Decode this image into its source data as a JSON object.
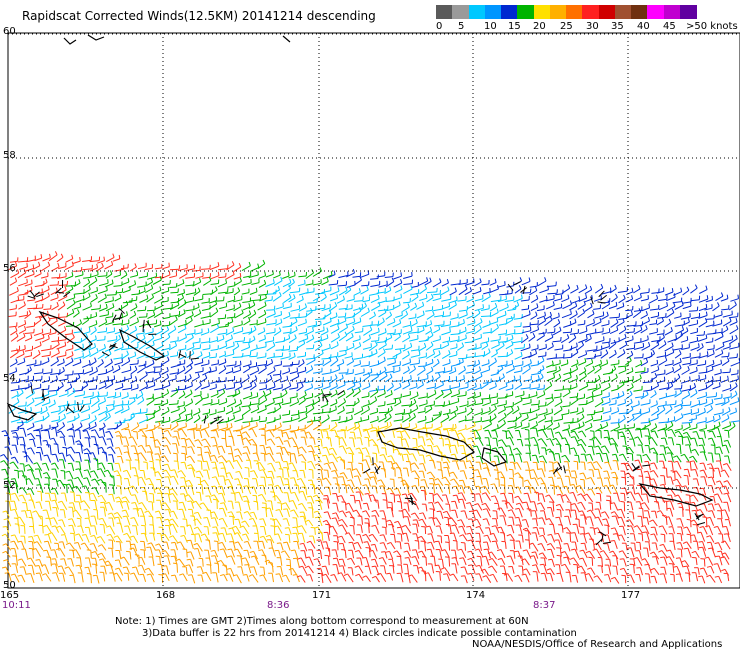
{
  "header": {
    "title": "Rapidscat Corrected Winds(12.5KM) 20141214 descending"
  },
  "colorbar": {
    "colors": [
      "#5a5a5a",
      "#9a9a9a",
      "#00c8ff",
      "#0096ff",
      "#0028d0",
      "#00b400",
      "#ffe000",
      "#ffb000",
      "#ff7000",
      "#ff2020",
      "#d00000",
      "#a05030",
      "#703010",
      "#ff00ff",
      "#c000d0",
      "#6000a0"
    ],
    "labels": [
      "0",
      "5",
      "10",
      "15",
      "20",
      "25",
      "30",
      "35",
      "40",
      "45",
      ">50 knots"
    ]
  },
  "map": {
    "lat_labels": [
      "60",
      "58",
      "56",
      "54",
      "52",
      "50"
    ],
    "lon_labels": [
      "165",
      "168",
      "171",
      "174",
      "177"
    ],
    "times": [
      "10:11",
      "8:36",
      "8:37"
    ]
  },
  "notes": {
    "line1": "Note: 1) Times are GMT 2)Times along bottom correspond to measurement at 60N",
    "line2": "3)Data buffer is 22 hrs from 20141214 4) Black circles indicate possible contamination",
    "credit": "NOAA/NESDIS/Office of Research and Applications"
  }
}
